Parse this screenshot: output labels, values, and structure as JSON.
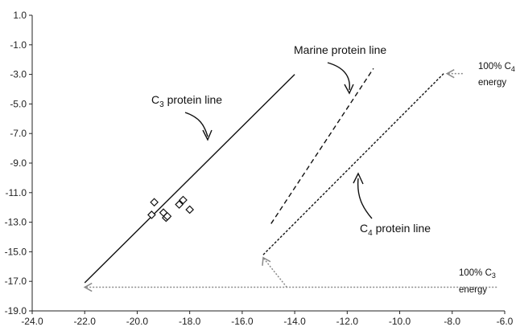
{
  "chart_data": {
    "type": "scatter",
    "xlim": [
      -24.0,
      -6.0
    ],
    "ylim": [
      -19.0,
      1.0
    ],
    "xticks": [
      -24.0,
      -22.0,
      -20.0,
      -18.0,
      -16.0,
      -14.0,
      -12.0,
      -10.0,
      -8.0,
      -6.0
    ],
    "yticks": [
      1.0,
      -1.0,
      -3.0,
      -5.0,
      -7.0,
      -9.0,
      -11.0,
      -13.0,
      -15.0,
      -17.0,
      -19.0
    ],
    "xtick_labels": [
      "-24.0",
      "-22.0",
      "-20.0",
      "-18.0",
      "-16.0",
      "-14.0",
      "-12.0",
      "-10.0",
      "-8.0",
      "-6.0"
    ],
    "ytick_labels": [
      "1.0",
      "-1.0",
      "-3.0",
      "-5.0",
      "-7.0",
      "-9.0",
      "-11.0",
      "-13.0",
      "-15.0",
      "-17.0",
      "-19.0"
    ],
    "grid": false,
    "points": [
      {
        "x": -19.35,
        "y": -11.65
      },
      {
        "x": -19.45,
        "y": -12.5
      },
      {
        "x": -19.0,
        "y": -12.35
      },
      {
        "x": -18.9,
        "y": -12.7
      },
      {
        "x": -18.85,
        "y": -12.6
      },
      {
        "x": -18.4,
        "y": -11.8
      },
      {
        "x": -18.25,
        "y": -11.5
      },
      {
        "x": -18.0,
        "y": -12.15
      }
    ],
    "lines": [
      {
        "style": "solid",
        "x": [
          -22.0,
          -14.0
        ],
        "y": [
          -17.1,
          -3.0
        ]
      },
      {
        "style": "dashed",
        "x": [
          -14.9,
          -11.0
        ],
        "y": [
          -13.1,
          -2.6
        ]
      },
      {
        "style": "dotted",
        "x": [
          -15.2,
          -8.3
        ],
        "y": [
          -15.2,
          -2.9
        ]
      }
    ],
    "energy_arrows": [
      {
        "from": [
          -6.3,
          -17.4
        ],
        "to": [
          -22.0,
          -17.4
        ],
        "branch_from": [
          -14.3,
          -17.4
        ],
        "branch_to": [
          -15.2,
          -15.4
        ]
      },
      {
        "from": [
          -7.6,
          -2.95
        ],
        "to": [
          -8.2,
          -2.95
        ]
      }
    ],
    "annotations": [
      {
        "text_main": "C",
        "sub": "3",
        "text_rest": " protein line"
      },
      {
        "text_main": "Marine protein line",
        "sub": "",
        "text_rest": ""
      },
      {
        "text_main": "C",
        "sub": "4",
        "text_rest": " protein line"
      },
      {
        "text_main": "100% C",
        "sub": "4",
        "text_rest": "",
        "line2": "energy"
      },
      {
        "text_main": "100% C",
        "sub": "3",
        "text_rest": "",
        "line2": "energy"
      }
    ]
  }
}
